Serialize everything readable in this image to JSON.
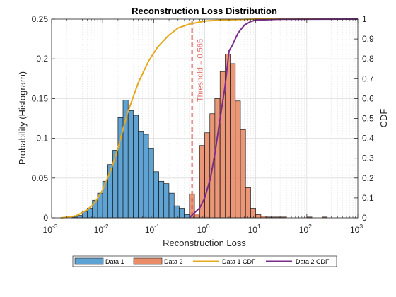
{
  "chart_data": {
    "type": "bar",
    "title": "Reconstruction Loss Distribution",
    "xlabel": "Reconstruction Loss",
    "ylabel": "Probability (Histogram)",
    "y2label": "CDF",
    "xscale": "log",
    "xlim": [
      0.001,
      1000
    ],
    "ylim": [
      0,
      0.25
    ],
    "y2lim": [
      0,
      1
    ],
    "grid": true,
    "legend_position": "bottom-outside",
    "x_tick_labels": [
      {
        "base": "10",
        "exp": "-3",
        "value": 0.001
      },
      {
        "base": "10",
        "exp": "-2",
        "value": 0.01
      },
      {
        "base": "10",
        "exp": "-1",
        "value": 0.1
      },
      {
        "base": "10",
        "exp": "0",
        "value": 1
      },
      {
        "base": "10",
        "exp": "1",
        "value": 10
      },
      {
        "base": "10",
        "exp": "2",
        "value": 100
      },
      {
        "base": "10",
        "exp": "3",
        "value": 1000
      }
    ],
    "y_tick_labels": [
      "0",
      "0.05",
      "0.1",
      "0.15",
      "0.2",
      "0.25"
    ],
    "y2_tick_labels": [
      "0",
      "0.1",
      "0.2",
      "0.3",
      "0.4",
      "0.5",
      "0.6",
      "0.7",
      "0.8",
      "0.9",
      "1"
    ],
    "histograms": [
      {
        "name": "Data 1",
        "color": "#5fa2d4",
        "log_bin_width": 0.1,
        "bins": [
          {
            "left": 0.00251,
            "value": 0.001
          },
          {
            "left": 0.00316,
            "value": 0.003
          },
          {
            "left": 0.00398,
            "value": 0.008
          },
          {
            "left": 0.00501,
            "value": 0.012
          },
          {
            "left": 0.00631,
            "value": 0.022
          },
          {
            "left": 0.00794,
            "value": 0.031
          },
          {
            "left": 0.01,
            "value": 0.046
          },
          {
            "left": 0.0126,
            "value": 0.067
          },
          {
            "left": 0.0158,
            "value": 0.085
          },
          {
            "left": 0.02,
            "value": 0.126
          },
          {
            "left": 0.0251,
            "value": 0.148
          },
          {
            "left": 0.0316,
            "value": 0.135
          },
          {
            "left": 0.0398,
            "value": 0.129
          },
          {
            "left": 0.0501,
            "value": 0.109
          },
          {
            "left": 0.0631,
            "value": 0.105
          },
          {
            "left": 0.0794,
            "value": 0.087
          },
          {
            "left": 0.1,
            "value": 0.058
          },
          {
            "left": 0.126,
            "value": 0.046
          },
          {
            "left": 0.158,
            "value": 0.043
          },
          {
            "left": 0.2,
            "value": 0.031
          },
          {
            "left": 0.251,
            "value": 0.015
          },
          {
            "left": 0.316,
            "value": 0.012
          },
          {
            "left": 0.398,
            "value": 0.004
          },
          {
            "left": 0.501,
            "value": 0.003
          },
          {
            "left": 0.631,
            "value": 0.003
          },
          {
            "left": 0.794,
            "value": 0.002
          },
          {
            "left": 1.0,
            "value": 0.001
          }
        ]
      },
      {
        "name": "Data 2",
        "color": "#e98c68",
        "log_bin_width": 0.1,
        "bins": [
          {
            "left": 0.501,
            "value": 0.03
          },
          {
            "left": 0.631,
            "value": 0.005
          },
          {
            "left": 0.794,
            "value": 0.091
          },
          {
            "left": 1.0,
            "value": 0.107
          },
          {
            "left": 1.26,
            "value": 0.131
          },
          {
            "left": 1.58,
            "value": 0.15
          },
          {
            "left": 2.0,
            "value": 0.184
          },
          {
            "left": 2.51,
            "value": 0.206
          },
          {
            "left": 3.16,
            "value": 0.194
          },
          {
            "left": 3.98,
            "value": 0.147
          },
          {
            "left": 5.01,
            "value": 0.111
          },
          {
            "left": 6.31,
            "value": 0.038
          },
          {
            "left": 7.94,
            "value": 0.012
          },
          {
            "left": 10.0,
            "value": 0.004
          },
          {
            "left": 12.6,
            "value": 0.002
          },
          {
            "left": 15.8,
            "value": 0.001
          },
          {
            "left": 20.0,
            "value": 0.001
          },
          {
            "left": 25.1,
            "value": 0.001
          },
          {
            "left": 31.6,
            "value": 0.001
          },
          {
            "left": 100.0,
            "value": 0.001
          },
          {
            "left": 200.0,
            "value": 0.001
          }
        ]
      }
    ],
    "cdfs": [
      {
        "name": "Data 1 CDF",
        "color": "#e4a91f",
        "points": [
          [
            0.0015,
            0.0
          ],
          [
            0.002,
            0.003
          ],
          [
            0.003,
            0.01
          ],
          [
            0.005,
            0.04
          ],
          [
            0.007,
            0.075
          ],
          [
            0.01,
            0.14
          ],
          [
            0.015,
            0.25
          ],
          [
            0.02,
            0.35
          ],
          [
            0.03,
            0.52
          ],
          [
            0.05,
            0.68
          ],
          [
            0.08,
            0.79
          ],
          [
            0.12,
            0.86
          ],
          [
            0.2,
            0.92
          ],
          [
            0.3,
            0.955
          ],
          [
            0.5,
            0.975
          ],
          [
            1,
            0.99
          ],
          [
            2,
            0.995
          ],
          [
            10,
            1.0
          ],
          [
            1000,
            1.0
          ]
        ]
      },
      {
        "name": "Data 2 CDF",
        "color": "#7b2d8e",
        "points": [
          [
            0.5,
            0.0
          ],
          [
            0.6,
            0.02
          ],
          [
            0.8,
            0.05
          ],
          [
            1.0,
            0.1
          ],
          [
            1.3,
            0.2
          ],
          [
            1.6,
            0.33
          ],
          [
            2.0,
            0.5
          ],
          [
            2.5,
            0.66
          ],
          [
            3.0,
            0.84
          ],
          [
            3.5,
            0.87
          ],
          [
            4.5,
            0.93
          ],
          [
            6.0,
            0.97
          ],
          [
            8.0,
            0.988
          ],
          [
            10.0,
            0.995
          ],
          [
            30.0,
            0.999
          ],
          [
            1000,
            1.0
          ]
        ]
      }
    ],
    "threshold": {
      "value": 0.565,
      "label": "Threshold = 0.565",
      "color": "#d9534f"
    },
    "legend": [
      "Data 1",
      "Data 2",
      "Data 1 CDF",
      "Data 2 CDF"
    ]
  }
}
